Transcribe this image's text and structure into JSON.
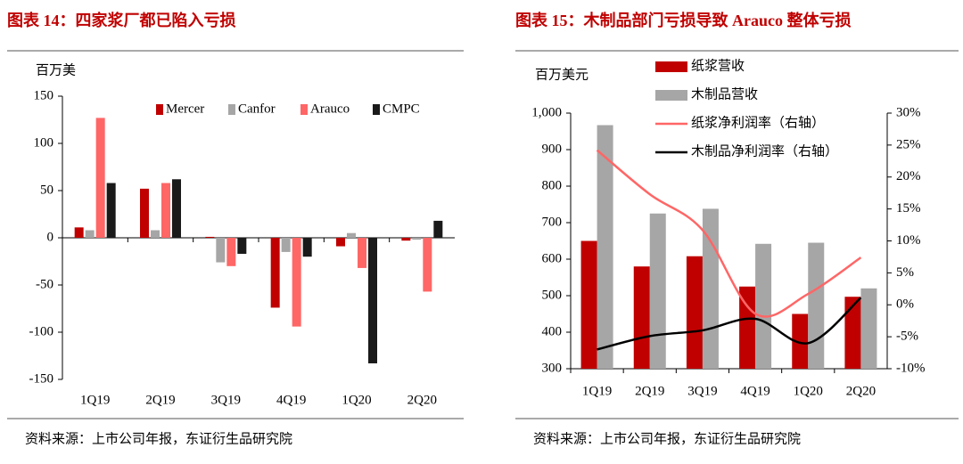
{
  "chart_data": [
    {
      "type": "bar",
      "title": "图表 14：四家浆厂都已陷入亏损",
      "y_label": "百万美",
      "source": "资料来源：上市公司年报，东证衍生品研究院",
      "categories": [
        "1Q19",
        "2Q19",
        "3Q19",
        "4Q19",
        "1Q20",
        "2Q20"
      ],
      "series": [
        {
          "name": "Mercer",
          "color": "#c00000",
          "values": [
            11,
            52,
            1,
            -74,
            -9,
            -3
          ]
        },
        {
          "name": "Canfor",
          "color": "#a6a6a6",
          "values": [
            8,
            8,
            -26,
            -15,
            5,
            -2
          ]
        },
        {
          "name": "Arauco",
          "color": "#ff6666",
          "values": [
            127,
            58,
            -30,
            -94,
            -32,
            -57
          ]
        },
        {
          "name": "CMPC",
          "color": "#1a1a1a",
          "values": [
            58,
            62,
            -17,
            -20,
            -133,
            18
          ]
        }
      ],
      "ylim": [
        -150,
        150
      ],
      "yticks": [
        -150,
        -100,
        -50,
        0,
        50,
        100,
        150
      ]
    },
    {
      "type": "bar",
      "title": "图表 15：木制品部门亏损导致 Arauco 整体亏损",
      "y_label": "百万美元",
      "source": "资料来源：上市公司年报，东证衍生品研究院",
      "categories": [
        "1Q19",
        "2Q19",
        "3Q19",
        "4Q19",
        "1Q20",
        "2Q20"
      ],
      "series": [
        {
          "name": "纸浆营收",
          "color": "#c00000",
          "values": [
            650,
            580,
            608,
            525,
            450,
            497
          ]
        },
        {
          "name": "木制品营收",
          "color": "#a6a6a6",
          "values": [
            967,
            725,
            738,
            642,
            645,
            520
          ]
        },
        {
          "name": "纸浆净利润率（右轴）",
          "color": "#ff6666",
          "type": "line",
          "axis": "y2",
          "values": [
            24.2,
            17.3,
            11.7,
            -1.4,
            1.7,
            7.4
          ]
        },
        {
          "name": "木制品净利润率（右轴）",
          "color": "#000000",
          "type": "line",
          "axis": "y2",
          "values": [
            -7.0,
            -4.9,
            -4.0,
            -2.2,
            -6.0,
            1.1
          ]
        }
      ],
      "ylim": [
        300,
        1000
      ],
      "yticks": [
        300,
        400,
        500,
        600,
        700,
        800,
        900,
        {
          "value": 1000,
          "label": "1,000"
        }
      ],
      "y2lim": [
        -10,
        30
      ],
      "y2ticks": [
        {
          "value": -10,
          "label": "-10%"
        },
        {
          "value": -5,
          "label": "-5%"
        },
        {
          "value": 0,
          "label": "0%"
        },
        {
          "value": 5,
          "label": "5%"
        },
        {
          "value": 10,
          "label": "10%"
        },
        {
          "value": 15,
          "label": "15%"
        },
        {
          "value": 20,
          "label": "20%"
        },
        {
          "value": 25,
          "label": "25%"
        },
        {
          "value": 30,
          "label": "30%"
        }
      ]
    }
  ]
}
